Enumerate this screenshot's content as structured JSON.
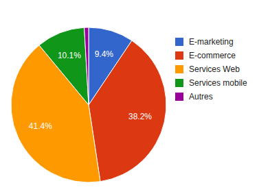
{
  "chart_data": {
    "type": "pie",
    "categories": [
      "E-marketing",
      "E-commerce",
      "Services Web",
      "Services mobile",
      "Autres"
    ],
    "values": [
      9.4,
      38.2,
      41.4,
      10.1,
      0.9
    ],
    "value_labels": [
      "9.4%",
      "38.2%",
      "41.4%",
      "10.1%",
      null
    ],
    "colors": [
      "#3366cc",
      "#dc3912",
      "#ff9900",
      "#109618",
      "#990099"
    ],
    "data_labels": true,
    "legend": "right"
  }
}
